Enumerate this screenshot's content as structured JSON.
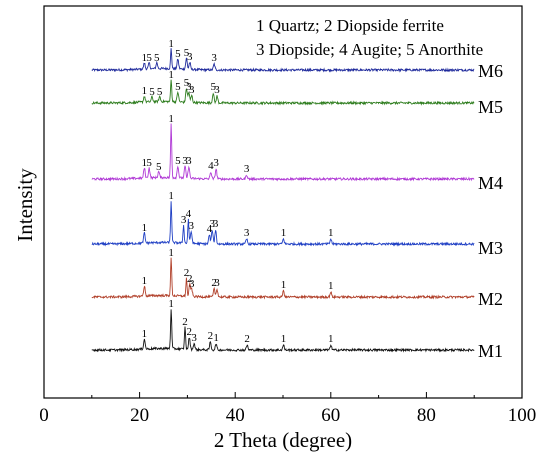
{
  "chart_data": {
    "type": "line",
    "title": "",
    "xlabel": "2 Theta (degree)",
    "ylabel": "Intensity",
    "xlim": [
      0,
      100
    ],
    "xticks": [
      0,
      20,
      40,
      60,
      80,
      100
    ],
    "grid": false,
    "y_ticks_shown": false,
    "legend": {
      "placement": "top-right",
      "lines": [
        "1 Quartz; 2  Diopside ferrite",
        "3 Diopside; 4 Augite; 5 Anorthite"
      ]
    },
    "series": [
      {
        "name": "M6",
        "color": "#1f2a9c",
        "baseline": 72,
        "x_range": [
          10,
          90
        ],
        "peaks": [
          {
            "x": 21.0,
            "h": 6,
            "label": "1"
          },
          {
            "x": 22.0,
            "h": 6,
            "label": "5"
          },
          {
            "x": 23.6,
            "h": 6,
            "label": "5"
          },
          {
            "x": 26.6,
            "h": 20,
            "label": "1"
          },
          {
            "x": 28.0,
            "h": 10,
            "label": "5"
          },
          {
            "x": 29.8,
            "h": 11,
            "label": "5"
          },
          {
            "x": 30.5,
            "h": 7,
            "label": "3"
          },
          {
            "x": 35.6,
            "h": 6,
            "label": "3"
          }
        ]
      },
      {
        "name": "M5",
        "color": "#2e7d1e",
        "baseline": 72,
        "x_range": [
          10,
          90
        ],
        "peaks": [
          {
            "x": 21.0,
            "h": 6,
            "label": "1"
          },
          {
            "x": 22.6,
            "h": 5,
            "label": "5"
          },
          {
            "x": 24.2,
            "h": 5,
            "label": "5"
          },
          {
            "x": 26.6,
            "h": 22,
            "label": "1"
          },
          {
            "x": 28.0,
            "h": 10,
            "label": "5"
          },
          {
            "x": 29.8,
            "h": 14,
            "label": "5"
          },
          {
            "x": 30.3,
            "h": 10,
            "label": "3"
          },
          {
            "x": 30.9,
            "h": 7,
            "label": "3"
          },
          {
            "x": 35.4,
            "h": 10,
            "label": "5"
          },
          {
            "x": 36.2,
            "h": 7,
            "label": "3"
          }
        ]
      },
      {
        "name": "M4",
        "color": "#b13bd6",
        "baseline": 72,
        "x_range": [
          10,
          90
        ],
        "peaks": [
          {
            "x": 21.0,
            "h": 10,
            "label": "1"
          },
          {
            "x": 22.0,
            "h": 10,
            "label": "5"
          },
          {
            "x": 24.0,
            "h": 6,
            "label": "5"
          },
          {
            "x": 26.6,
            "h": 54,
            "label": "1"
          },
          {
            "x": 28.0,
            "h": 12,
            "label": "5"
          },
          {
            "x": 29.5,
            "h": 12,
            "label": "3"
          },
          {
            "x": 30.3,
            "h": 12,
            "label": "3"
          },
          {
            "x": 34.9,
            "h": 7,
            "label": "4"
          },
          {
            "x": 36.0,
            "h": 10,
            "label": "3"
          },
          {
            "x": 42.4,
            "h": 4,
            "label": "3"
          }
        ]
      },
      {
        "name": "M3",
        "color": "#1f3fc4",
        "baseline": 72,
        "x_range": [
          10,
          90
        ],
        "peaks": [
          {
            "x": 21.0,
            "h": 10,
            "label": "1"
          },
          {
            "x": 26.6,
            "h": 42,
            "label": "1"
          },
          {
            "x": 29.2,
            "h": 18,
            "label": "3"
          },
          {
            "x": 30.2,
            "h": 24,
            "label": "4"
          },
          {
            "x": 30.8,
            "h": 12,
            "label": "3"
          },
          {
            "x": 34.6,
            "h": 9,
            "label": "4"
          },
          {
            "x": 35.2,
            "h": 14,
            "label": "3"
          },
          {
            "x": 35.9,
            "h": 14,
            "label": "3"
          },
          {
            "x": 42.4,
            "h": 5,
            "label": "3"
          },
          {
            "x": 50.1,
            "h": 5,
            "label": "1"
          },
          {
            "x": 60.0,
            "h": 5,
            "label": "1"
          }
        ]
      },
      {
        "name": "M2",
        "color": "#b1402a",
        "baseline": 72,
        "x_range": [
          10,
          90
        ],
        "peaks": [
          {
            "x": 21.0,
            "h": 10,
            "label": "1"
          },
          {
            "x": 26.6,
            "h": 38,
            "label": "1"
          },
          {
            "x": 29.8,
            "h": 18,
            "label": "2"
          },
          {
            "x": 30.5,
            "h": 12,
            "label": "2"
          },
          {
            "x": 30.9,
            "h": 7,
            "label": "3"
          },
          {
            "x": 35.6,
            "h": 8,
            "label": "2"
          },
          {
            "x": 36.2,
            "h": 8,
            "label": "3"
          },
          {
            "x": 50.1,
            "h": 6,
            "label": "1"
          },
          {
            "x": 60.0,
            "h": 5,
            "label": "1"
          }
        ]
      },
      {
        "name": "M1",
        "color": "#111111",
        "baseline": 72,
        "x_range": [
          10,
          90
        ],
        "peaks": [
          {
            "x": 21.0,
            "h": 10,
            "label": "1"
          },
          {
            "x": 26.6,
            "h": 40,
            "label": "1"
          },
          {
            "x": 29.5,
            "h": 22,
            "label": "2"
          },
          {
            "x": 30.4,
            "h": 12,
            "label": "2"
          },
          {
            "x": 31.4,
            "h": 6,
            "label": "3"
          },
          {
            "x": 34.8,
            "h": 8,
            "label": "2"
          },
          {
            "x": 36.0,
            "h": 6,
            "label": "1"
          },
          {
            "x": 42.5,
            "h": 5,
            "label": "2"
          },
          {
            "x": 50.1,
            "h": 5,
            "label": "1"
          },
          {
            "x": 60.0,
            "h": 5,
            "label": "1"
          }
        ]
      }
    ]
  }
}
